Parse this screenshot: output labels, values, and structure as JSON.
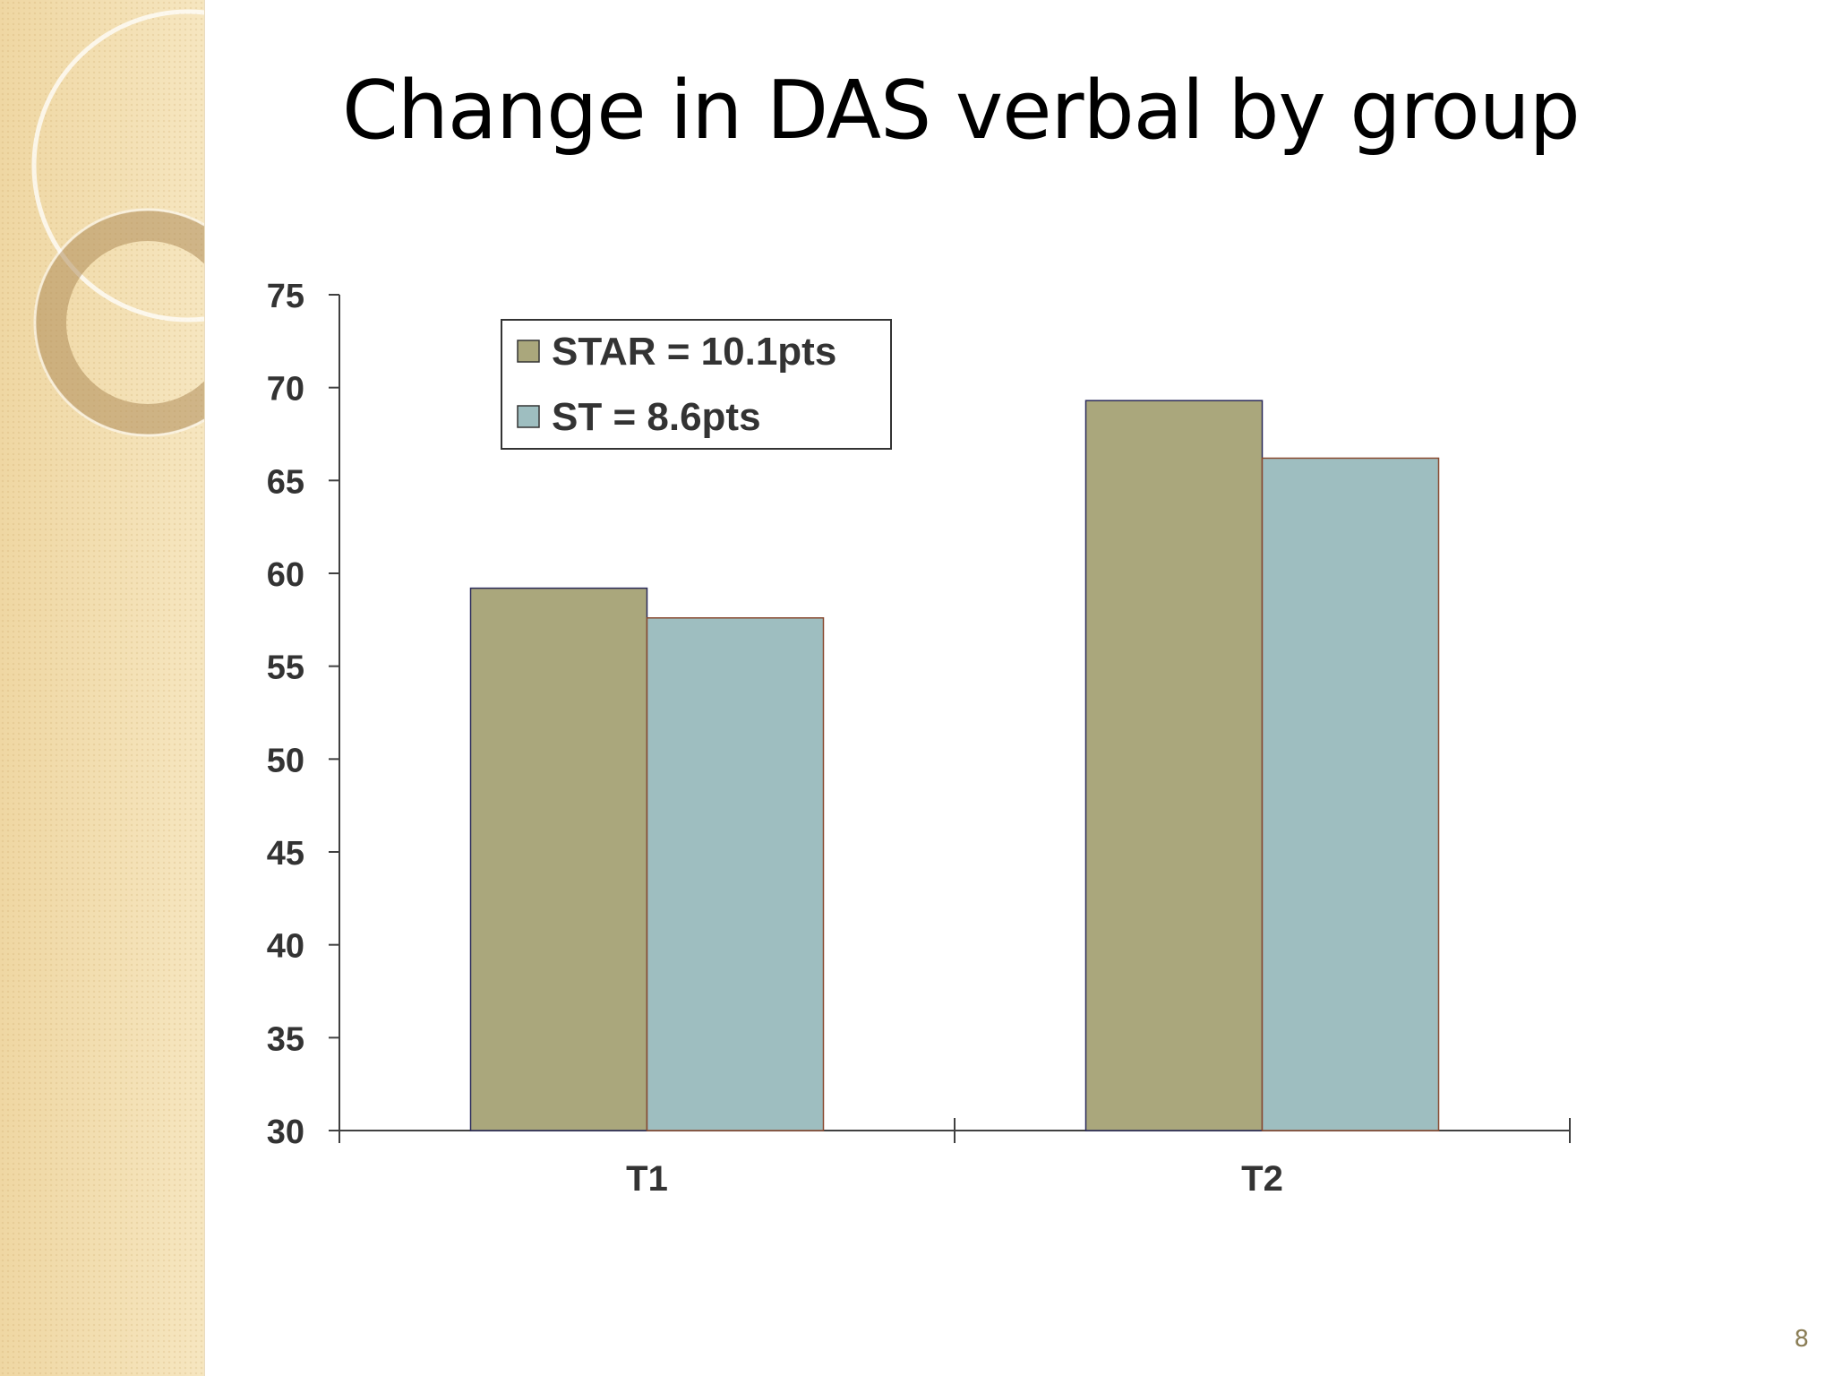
{
  "slide": {
    "title": "Change in DAS verbal by group",
    "page_number": "8"
  },
  "colors": {
    "sidebar": "#f3dfb1",
    "star": "#aaa77c",
    "st": "#9ebec0",
    "axis": "#404040"
  },
  "chart_data": {
    "type": "bar",
    "title": "",
    "xlabel": "",
    "ylabel": "",
    "categories": [
      "T1",
      "T2"
    ],
    "series": [
      {
        "name": "STAR = 10.1pts",
        "values": [
          59.2,
          69.3
        ],
        "color": "#aaa77c"
      },
      {
        "name": "ST = 8.6pts",
        "values": [
          57.6,
          66.2
        ],
        "color": "#9ebec0"
      }
    ],
    "ylim": [
      30,
      75
    ],
    "yticks": [
      30,
      35,
      40,
      45,
      50,
      55,
      60,
      65,
      70,
      75
    ],
    "grid": false,
    "legend_position": "top-left"
  }
}
